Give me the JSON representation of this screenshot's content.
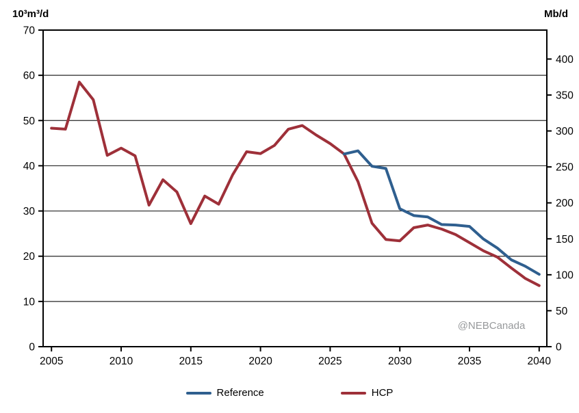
{
  "chart": {
    "left_axis_unit": "10³m³/d",
    "right_axis_unit": "Mb/d",
    "watermark": "@NEBCanada"
  },
  "chart_data": {
    "type": "line",
    "title": "",
    "y_left_label": "10³m³/d",
    "y_right_label": "Mb/d",
    "watermark": "@NEBCanada",
    "x_range": [
      2004.4,
      2040.55
    ],
    "y_left_range": [
      0,
      70
    ],
    "left_ticks": [
      0,
      10,
      20,
      30,
      40,
      50,
      60,
      70
    ],
    "right_ticks": [
      0,
      50,
      100,
      150,
      200,
      250,
      300,
      350,
      400
    ],
    "x_ticks": [
      2005,
      2010,
      2015,
      2020,
      2025,
      2030,
      2035,
      2040
    ],
    "grid": "horizontal",
    "legend_position": "bottom",
    "series": [
      {
        "name": "Reference",
        "color": "#2F5F8F",
        "x": [
          2026,
          2027,
          2028,
          2029,
          2030,
          2031,
          2032,
          2033,
          2034,
          2035,
          2036,
          2037,
          2038,
          2039,
          2040
        ],
        "values": [
          42.6,
          43.3,
          39.9,
          39.4,
          30.5,
          29.0,
          28.7,
          27.0,
          26.9,
          26.6,
          23.8,
          21.8,
          19.2,
          17.8,
          16.0
        ]
      },
      {
        "name": "HCP",
        "color": "#9E3039",
        "x": [
          2005,
          2006,
          2007,
          2008,
          2009,
          2010,
          2011,
          2012,
          2013,
          2014,
          2015,
          2016,
          2017,
          2018,
          2019,
          2020,
          2021,
          2022,
          2023,
          2024,
          2025,
          2026,
          2027,
          2028,
          2029,
          2030,
          2031,
          2032,
          2033,
          2034,
          2035,
          2036,
          2037,
          2038,
          2039,
          2040
        ],
        "values": [
          48.3,
          48.1,
          58.5,
          54.6,
          42.3,
          43.9,
          42.2,
          31.3,
          36.9,
          34.2,
          27.2,
          33.3,
          31.5,
          38.0,
          43.1,
          42.7,
          44.5,
          48.1,
          48.9,
          46.8,
          44.9,
          42.6,
          36.5,
          27.3,
          23.7,
          23.4,
          26.3,
          26.9,
          26.0,
          24.8,
          23.0,
          21.2,
          19.8,
          17.4,
          15.1,
          13.5
        ]
      }
    ]
  }
}
